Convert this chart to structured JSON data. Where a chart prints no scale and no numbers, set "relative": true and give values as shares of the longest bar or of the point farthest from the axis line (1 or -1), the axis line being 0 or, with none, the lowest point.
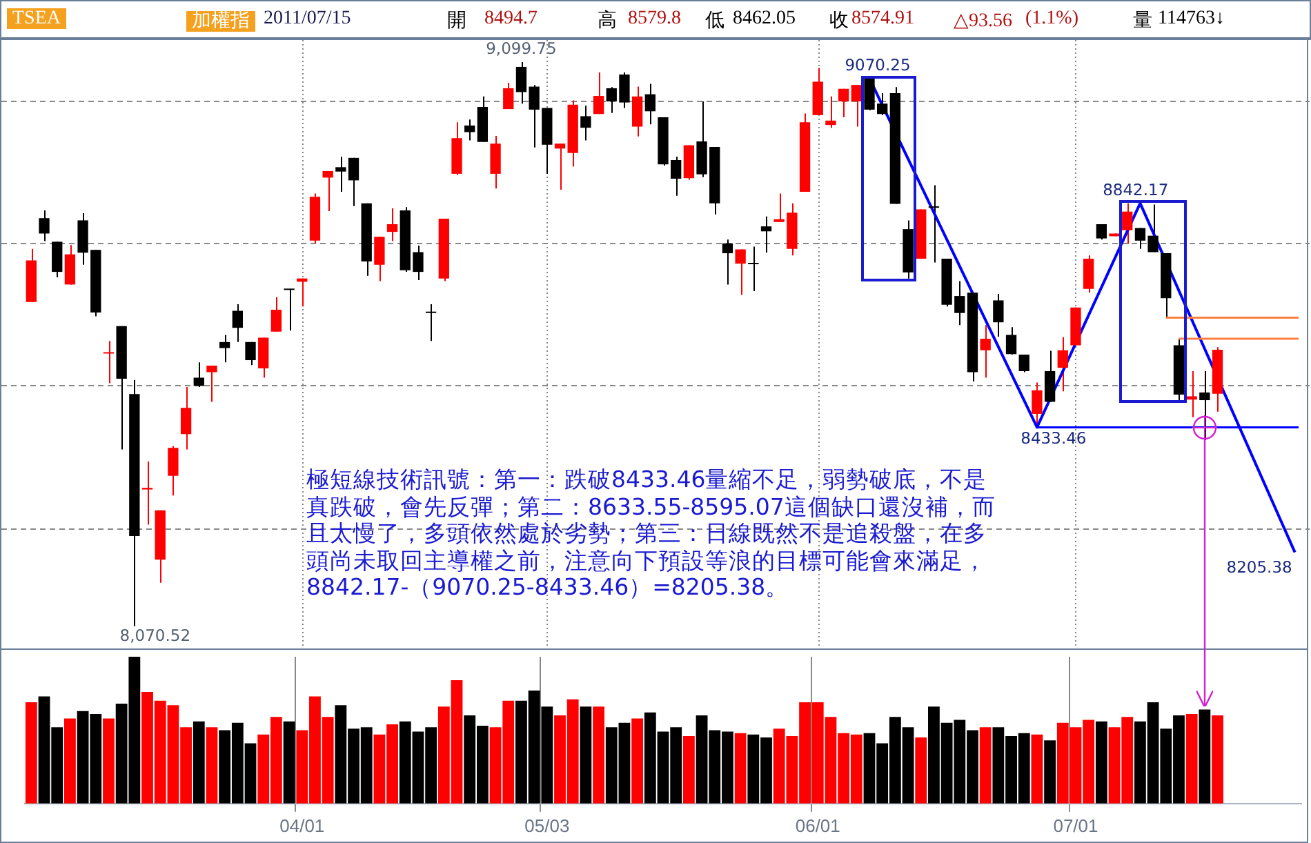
{
  "chart_data": [
    {
      "type": "candlestick",
      "title": "TSEA",
      "subtitle": "加權指",
      "categories": [
        null,
        null,
        null,
        null,
        null,
        null,
        null,
        null,
        null,
        null,
        null,
        null,
        null,
        null,
        null,
        null,
        null,
        null,
        null,
        null,
        null,
        null,
        null,
        null,
        null,
        null,
        null,
        null,
        null,
        null,
        null,
        null,
        null,
        null,
        null,
        null,
        null,
        null,
        null,
        null,
        null,
        null,
        null,
        null,
        null,
        null,
        null,
        null,
        null,
        null,
        null,
        null,
        null,
        null,
        null,
        null,
        null,
        null,
        null,
        null,
        null,
        null,
        null,
        null,
        null,
        null,
        null,
        null,
        null,
        null,
        null,
        null,
        null,
        null,
        null,
        null,
        null,
        null,
        null,
        null,
        null,
        null,
        null,
        null,
        null,
        null,
        null,
        null,
        null,
        null,
        null,
        null,
        null,
        null,
        null,
        null,
        null,
        null,
        null
      ],
      "ohlc": [
        [
          8662,
          8759,
          8662,
          8738
        ],
        [
          8815,
          8829,
          8773,
          8787
        ],
        [
          8772,
          8772,
          8707,
          8717
        ],
        [
          8694,
          8766,
          8694,
          8749
        ],
        [
          8811,
          8824,
          8730,
          8752
        ],
        [
          8757,
          8757,
          8636,
          8643
        ],
        [
          8568,
          8591,
          8514,
          8570
        ],
        [
          8618,
          8618,
          8393,
          8522
        ],
        [
          8494,
          8520,
          8070.52,
          8235
        ],
        [
          8320,
          8371,
          8256,
          8323
        ],
        [
          8192,
          8282,
          8150,
          8282
        ],
        [
          8345,
          8399,
          8309,
          8396
        ],
        [
          8421,
          8507,
          8393,
          8469
        ],
        [
          8524,
          8552,
          8507,
          8509
        ],
        [
          8534,
          8546,
          8480,
          8546
        ],
        [
          8589,
          8602,
          8552,
          8578
        ],
        [
          8646,
          8658,
          8589,
          8615
        ],
        [
          8589,
          8589,
          8547,
          8556
        ],
        [
          8541,
          8597,
          8524,
          8597
        ],
        [
          8608,
          8671,
          8608,
          8648
        ],
        [
          8686,
          8686,
          8610,
          8684
        ],
        [
          8699,
          8705,
          8654,
          8705
        ],
        [
          8774,
          8860,
          8769,
          8854
        ],
        [
          8889,
          8901,
          8828,
          8901
        ],
        [
          8908,
          8927,
          8863,
          8900
        ],
        [
          8925,
          8925,
          8837,
          8884
        ],
        [
          8842,
          8842,
          8710,
          8736
        ],
        [
          8730,
          8781,
          8700,
          8781
        ],
        [
          8790,
          8833,
          8773,
          8804
        ],
        [
          8829,
          8835,
          8717,
          8720
        ],
        [
          8753,
          8765,
          8702,
          8717
        ],
        [
          8644,
          8658,
          8591,
          8642
        ],
        [
          8705,
          8814,
          8700,
          8814
        ],
        [
          8896,
          8990,
          8894,
          8961
        ],
        [
          8984,
          8995,
          8957,
          8972
        ],
        [
          9018,
          9037,
          8954,
          8954
        ],
        [
          8896,
          8965,
          8869,
          8951
        ],
        [
          9014,
          9062,
          9014,
          9052
        ],
        [
          9091,
          9099.75,
          9024,
          9045
        ],
        [
          9055,
          9058,
          8944,
          9013
        ],
        [
          9016,
          9016,
          8896,
          8949
        ],
        [
          8942,
          8951,
          8867,
          8951
        ],
        [
          8934,
          9030,
          8909,
          9022
        ],
        [
          9001,
          9020,
          8957,
          8980
        ],
        [
          9005,
          9081,
          9005,
          9038
        ],
        [
          9052,
          9054,
          9007,
          9028
        ],
        [
          9077,
          9081,
          9016,
          9026
        ],
        [
          8982,
          9055,
          8964,
          9037
        ],
        [
          9041,
          9060,
          8986,
          9010
        ],
        [
          8999,
          8999,
          8911,
          8913
        ],
        [
          8921,
          8927,
          8856,
          8887
        ],
        [
          8888,
          8948,
          8885,
          8948
        ],
        [
          8955,
          9028,
          8890,
          8895
        ],
        [
          8945,
          8945,
          8822,
          8842
        ],
        [
          8769,
          8776,
          8694,
          8751
        ],
        [
          8732,
          8758,
          8675,
          8758
        ],
        [
          8733,
          8763,
          8682,
          8731
        ],
        [
          8800,
          8818,
          8752,
          8791
        ],
        [
          8808,
          8860,
          8808,
          8813
        ],
        [
          8759,
          8842,
          8747,
          8825
        ],
        [
          8863,
          9006,
          8863,
          8990
        ],
        [
          9003,
          9089,
          9003,
          9064
        ],
        [
          8985,
          9037,
          8980,
          8993
        ],
        [
          9028,
          9051,
          8999,
          9051
        ],
        [
          9028,
          9058,
          8982,
          9058
        ],
        [
          9070,
          9070.25,
          9012,
          9013
        ],
        [
          9024,
          9043,
          9003,
          9005
        ],
        [
          9043,
          9054,
          8841,
          8841
        ],
        [
          8795,
          8811,
          8705,
          8716
        ],
        [
          8741,
          8831,
          8741,
          8831
        ],
        [
          8836,
          8875,
          8734,
          8834
        ],
        [
          8741,
          8741,
          8654,
          8657
        ],
        [
          8673,
          8700,
          8620,
          8642
        ],
        [
          8679,
          8679,
          8517,
          8534
        ],
        [
          8574,
          8620,
          8524,
          8595
        ],
        [
          8665,
          8677,
          8599,
          8625
        ],
        [
          8602,
          8616,
          8566,
          8567
        ],
        [
          8566,
          8566,
          8534,
          8536
        ],
        [
          8458,
          8515,
          8433.46,
          8501
        ],
        [
          8536,
          8573,
          8480,
          8480
        ],
        [
          8542,
          8598,
          8499,
          8574
        ],
        [
          8583,
          8652,
          8583,
          8652
        ],
        [
          8686,
          8747,
          8679,
          8741
        ],
        [
          8804,
          8804,
          8776,
          8778
        ],
        [
          8782,
          8787,
          8782,
          8787
        ],
        [
          8793,
          8842.17,
          8768,
          8827
        ],
        [
          8797,
          8797,
          8759,
          8774
        ],
        [
          8783,
          8840,
          8753,
          8753
        ],
        [
          8751,
          8751,
          8633.55,
          8669
        ],
        [
          8583,
          8595.07,
          8482,
          8493
        ],
        [
          8484,
          8536,
          8452,
          8490
        ],
        [
          8497,
          8536,
          8410,
          8483
        ],
        [
          8494.7,
          8579.8,
          8462.05,
          8574.91
        ],
        null,
        null,
        null,
        null,
        null,
        null
      ],
      "colors": [
        "#ff0000",
        "#000000",
        "#000000",
        "#ff0000",
        "#000000",
        "#000000",
        "#ff0000",
        "#000000",
        "#000000",
        "#ff0000",
        "#ff0000",
        "#ff0000",
        "#ff0000",
        "#000000",
        "#ff0000",
        "#000000",
        "#000000",
        "#000000",
        "#ff0000",
        "#ff0000",
        "#000000",
        "#ff0000",
        "#ff0000",
        "#ff0000",
        "#000000",
        "#000000",
        "#000000",
        "#ff0000",
        "#ff0000",
        "#000000",
        "#000000",
        "#000000",
        "#ff0000",
        "#ff0000",
        "#000000",
        "#000000",
        "#ff0000",
        "#ff0000",
        "#000000",
        "#000000",
        "#000000",
        "#ff0000",
        "#ff0000",
        "#000000",
        "#ff0000",
        "#000000",
        "#000000",
        "#ff0000",
        "#000000",
        "#000000",
        "#000000",
        "#ff0000",
        "#000000",
        "#000000",
        "#000000",
        "#ff0000",
        "#000000",
        "#000000",
        "#ff0000",
        "#ff0000",
        "#ff0000",
        "#ff0000",
        "#ff0000",
        "#ff0000",
        "#ff0000",
        "#000000",
        "#000000",
        "#000000",
        "#000000",
        "#ff0000",
        "#000000",
        "#000000",
        "#000000",
        "#000000",
        "#ff0000",
        "#000000",
        "#000000",
        "#000000",
        "#ff0000",
        "#000000",
        "#ff0000",
        "#ff0000",
        "#ff0000",
        "#000000",
        "#ff0000",
        "#ff0000",
        "#000000",
        "#000000",
        "#000000",
        "#000000",
        "#ff0000",
        "#000000",
        "#ff0000",
        null,
        null,
        null,
        null,
        null,
        null
      ],
      "series": [
        {
          "type": "line",
          "color": "#0000ff",
          "values": [
            null,
            null,
            null,
            null,
            null,
            null,
            null,
            null,
            null,
            null,
            null,
            null,
            null,
            null,
            null,
            null,
            null,
            null,
            null,
            null,
            null,
            null,
            null,
            null,
            null,
            null,
            null,
            null,
            null,
            null,
            null,
            null,
            null,
            null,
            null,
            null,
            null,
            null,
            null,
            null,
            null,
            null,
            null,
            null,
            null,
            null,
            null,
            null,
            null,
            null,
            null,
            null,
            null,
            null,
            null,
            null,
            null,
            null,
            null,
            null,
            null,
            null,
            null,
            null,
            null,
            9070.25,
            null,
            null,
            null,
            null,
            null,
            null,
            null,
            null,
            null,
            null,
            null,
            null,
            8433.46,
            null,
            null,
            null,
            null,
            null,
            null,
            null,
            8842.17,
            null,
            null,
            null,
            null,
            null,
            null,
            null,
            null,
            null,
            null,
            null,
            8205.38
          ]
        }
      ],
      "ylim": [
        8030,
        9140
      ],
      "yticks": [
        {
          "value": 8250,
          "label": null
        },
        {
          "value": 8510,
          "label": null
        },
        {
          "value": 8770,
          "label": null
        },
        {
          "value": 9030,
          "label": null
        }
      ],
      "grid": true,
      "tick_labels": false,
      "ref_lines": [
        {
          "axis": "y",
          "value": 8433.46,
          "color": "#0000ff"
        },
        {
          "axis": "y",
          "value": 8633.55,
          "color": "#ff7f3f"
        },
        {
          "axis": "y",
          "value": 8595.07,
          "color": "#ff7f3f"
        }
      ],
      "annotations": [
        "2011/07/15",
        "開",
        "8494.7",
        "高",
        "8579.8",
        "低",
        "8462.05",
        "收",
        "8574.91",
        "△93.56",
        "(1.1%)",
        "量",
        "114763↓",
        "極短線技術訊號：第一：跌破8433.46量縮不足，弱勢破底，不是真跌破，會先反彈；第二：8633.55-8595.07這個缺口還沒補，而且太慢了，多頭依然處於劣勢；第三：日線既然不是追殺盤，在多頭尚未取回主導權之前，注意向下預設等浪的目標可能會來滿足，8842.17-（9070.25-8433.46）=8205.38。",
        {
          "text": "9,099.75",
          "y": 9099.75
        },
        {
          "text": "9070.25",
          "y": 9070.25
        },
        {
          "text": "8842.17",
          "y": 8842.17
        },
        {
          "text": "8433.46",
          "y": 8433.46
        },
        "8,070.52",
        "8205.38"
      ]
    },
    {
      "type": "bar",
      "relative": true,
      "grid": "x",
      "categories": [
        null,
        null,
        null,
        null,
        null,
        null,
        null,
        null,
        null,
        null,
        null,
        null,
        null,
        null,
        null,
        null,
        null,
        null,
        null,
        null,
        null,
        "04/01",
        null,
        null,
        null,
        null,
        null,
        null,
        null,
        null,
        null,
        null,
        null,
        null,
        null,
        null,
        null,
        null,
        null,
        null,
        "05/03",
        null,
        null,
        null,
        null,
        null,
        null,
        null,
        null,
        null,
        null,
        null,
        null,
        null,
        null,
        null,
        null,
        null,
        null,
        null,
        null,
        "06/01",
        null,
        null,
        null,
        null,
        null,
        null,
        null,
        null,
        null,
        null,
        null,
        null,
        null,
        null,
        null,
        null,
        null,
        null,
        null,
        "07/01",
        null,
        null,
        null,
        null,
        null,
        null,
        null,
        null,
        null,
        null,
        null,
        null,
        null,
        null,
        null,
        null,
        null
      ],
      "values": [
        0.69,
        0.73,
        0.52,
        0.58,
        0.63,
        0.61,
        0.58,
        0.68,
        1,
        0.76,
        0.7,
        0.67,
        0.52,
        0.56,
        0.52,
        0.5,
        0.55,
        0.41,
        0.47,
        0.59,
        0.56,
        0.5,
        0.73,
        0.59,
        0.67,
        0.51,
        0.52,
        0.47,
        0.54,
        0.56,
        0.49,
        0.52,
        0.66,
        0.84,
        0.6,
        0.53,
        0.52,
        0.7,
        0.7,
        0.77,
        0.66,
        0.6,
        0.71,
        0.66,
        0.66,
        0.52,
        0.55,
        0.58,
        0.62,
        0.49,
        0.52,
        0.46,
        0.6,
        0.5,
        0.49,
        0.48,
        0.47,
        0.45,
        0.51,
        0.46,
        0.69,
        0.69,
        0.59,
        0.48,
        0.47,
        0.48,
        0.41,
        0.59,
        0.52,
        0.45,
        0.66,
        0.55,
        0.57,
        0.5,
        0.52,
        0.52,
        0.46,
        0.48,
        0.47,
        0.43,
        0.55,
        0.52,
        0.57,
        0.56,
        0.52,
        0.59,
        0.56,
        0.69,
        0.51,
        0.6,
        0.61,
        0.64,
        0.6,
        null,
        null,
        null,
        null,
        null,
        null
      ],
      "colors": [
        "#ff0000",
        "#000000",
        "#000000",
        "#ff0000",
        "#000000",
        "#000000",
        "#ff0000",
        "#000000",
        "#000000",
        "#ff0000",
        "#ff0000",
        "#ff0000",
        "#ff0000",
        "#000000",
        "#ff0000",
        "#000000",
        "#000000",
        "#000000",
        "#ff0000",
        "#ff0000",
        "#000000",
        "#ff0000",
        "#ff0000",
        "#ff0000",
        "#000000",
        "#000000",
        "#000000",
        "#ff0000",
        "#ff0000",
        "#000000",
        "#000000",
        "#000000",
        "#ff0000",
        "#ff0000",
        "#000000",
        "#000000",
        "#ff0000",
        "#ff0000",
        "#000000",
        "#000000",
        "#000000",
        "#ff0000",
        "#ff0000",
        "#000000",
        "#ff0000",
        "#000000",
        "#000000",
        "#ff0000",
        "#000000",
        "#000000",
        "#000000",
        "#ff0000",
        "#000000",
        "#000000",
        "#000000",
        "#ff0000",
        "#000000",
        "#000000",
        "#ff0000",
        "#ff0000",
        "#ff0000",
        "#ff0000",
        "#ff0000",
        "#ff0000",
        "#ff0000",
        "#000000",
        "#000000",
        "#000000",
        "#000000",
        "#ff0000",
        "#000000",
        "#000000",
        "#000000",
        "#000000",
        "#ff0000",
        "#000000",
        "#000000",
        "#000000",
        "#ff0000",
        "#000000",
        "#ff0000",
        "#ff0000",
        "#ff0000",
        "#000000",
        "#ff0000",
        "#ff0000",
        "#000000",
        "#000000",
        "#000000",
        "#000000",
        "#ff0000",
        "#000000",
        "#ff0000",
        null,
        null,
        null,
        null,
        null,
        null
      ]
    }
  ]
}
